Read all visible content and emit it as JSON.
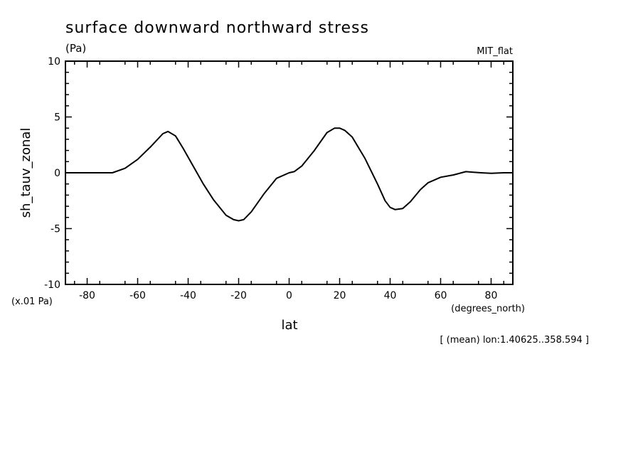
{
  "chart_data": {
    "type": "line",
    "title": "surface downward northward stress",
    "units": "(Pa)",
    "dataset": "MIT_flat",
    "ylabel": "sh_tauv_zonal",
    "xlabel": "lat",
    "x_units": "(degrees_north)",
    "y_scale_note": "(x.01 Pa)",
    "footnote": "[ (mean) lon:1.40625..358.594 ]",
    "xlim": [
      -88.6,
      88.6
    ],
    "ylim": [
      -10,
      10
    ],
    "x_ticks": [
      -80,
      -60,
      -40,
      -20,
      0,
      20,
      40,
      60,
      80
    ],
    "x_tick_labels": [
      "-80",
      "-60",
      "-40",
      "-20",
      "0",
      "20",
      "40",
      "60",
      "80"
    ],
    "y_ticks": [
      -10,
      -5,
      0,
      5,
      10
    ],
    "y_tick_labels": [
      "-10",
      "-5",
      "0",
      "5",
      "10"
    ],
    "grid": false,
    "series": [
      {
        "x": [
          -88.6,
          -80,
          -70,
          -65,
          -60,
          -55,
          -50,
          -48,
          -45,
          -42,
          -38,
          -34,
          -30,
          -25,
          -22,
          -20,
          -18,
          -15,
          -10,
          -5,
          0,
          2,
          5,
          10,
          15,
          18,
          20,
          22,
          25,
          30,
          35,
          38,
          40,
          42,
          45,
          48,
          52,
          55,
          60,
          65,
          70,
          73,
          76,
          80,
          85,
          88.6
        ],
        "y": [
          0,
          0,
          0,
          0.4,
          1.2,
          2.3,
          3.5,
          3.7,
          3.3,
          2.2,
          0.6,
          -1.0,
          -2.4,
          -3.8,
          -4.2,
          -4.3,
          -4.2,
          -3.5,
          -1.9,
          -0.5,
          0,
          0.1,
          0.6,
          2.0,
          3.6,
          4.0,
          4.0,
          3.8,
          3.2,
          1.3,
          -1.0,
          -2.5,
          -3.1,
          -3.3,
          -3.2,
          -2.6,
          -1.5,
          -0.9,
          -0.4,
          -0.2,
          0.1,
          0.05,
          0,
          -0.05,
          0,
          0
        ]
      }
    ]
  }
}
